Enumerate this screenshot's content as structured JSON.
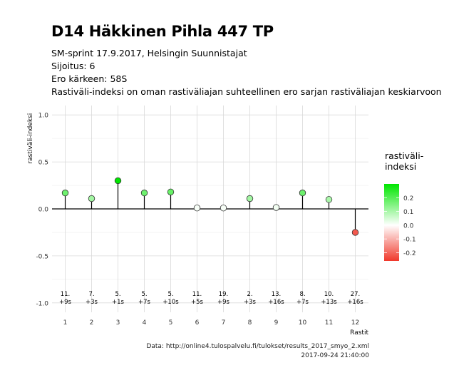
{
  "title": "D14 Häkkinen Pihla 447 TP",
  "subtitle_lines": [
    "SM-sprint 17.9.2017, Helsingin Suunnistajat",
    "Sijoitus: 6",
    "Ero kärkeen: 58S",
    "Rastiväli-indeksi on oman rastiväliajan suhteellinen ero sarjan rastiväliajan keskiarvoon"
  ],
  "caption": {
    "line1": "Data: http://online4.tulospalvelu.fi/tulokset/results_2017_smyo_2.xml",
    "line2": "2017-09-24 21:40:00"
  },
  "legend": {
    "title_line1": "rastiväli-",
    "title_line2": "indeksi",
    "ticks": [
      "0.2",
      "0.1",
      "0.0",
      "-0.1",
      "-0.2"
    ],
    "tick_values": [
      0.2,
      0.1,
      0.0,
      -0.1,
      -0.2
    ],
    "range": [
      -0.26,
      0.3
    ],
    "colors": {
      "high": "#00e600",
      "mid": "#ffffff",
      "low": "#f0382b"
    }
  },
  "chart_data": {
    "type": "lollipop",
    "xlabel": "Rastit",
    "ylabel": "rastiväli-indeksi",
    "ylim": [
      -1.0,
      1.0
    ],
    "yticks": [
      -1.0,
      -0.5,
      0.0,
      0.5,
      1.0
    ],
    "ytick_labels": [
      "-1.0",
      "-0.5",
      "0.0",
      "0.5",
      "1.0"
    ],
    "grid": true,
    "points": [
      {
        "x": 1,
        "value": 0.17,
        "rank": "11.",
        "diff": "+9s"
      },
      {
        "x": 2,
        "value": 0.11,
        "rank": "7.",
        "diff": "+3s"
      },
      {
        "x": 3,
        "value": 0.3,
        "rank": "5.",
        "diff": "+1s"
      },
      {
        "x": 4,
        "value": 0.17,
        "rank": "5.",
        "diff": "+7s"
      },
      {
        "x": 5,
        "value": 0.18,
        "rank": "5.",
        "diff": "+10s"
      },
      {
        "x": 6,
        "value": 0.01,
        "rank": "11.",
        "diff": "+5s"
      },
      {
        "x": 7,
        "value": 0.01,
        "rank": "19.",
        "diff": "+9s"
      },
      {
        "x": 8,
        "value": 0.11,
        "rank": "2.",
        "diff": "+3s"
      },
      {
        "x": 9,
        "value": 0.015,
        "rank": "13.",
        "diff": "+16s"
      },
      {
        "x": 10,
        "value": 0.17,
        "rank": "8.",
        "diff": "+7s"
      },
      {
        "x": 11,
        "value": 0.1,
        "rank": "10.",
        "diff": "+13s"
      },
      {
        "x": 12,
        "value": -0.25,
        "rank": "27.",
        "diff": "+16s"
      }
    ],
    "xtick_labels": [
      "1",
      "2",
      "3",
      "4",
      "5",
      "6",
      "7",
      "8",
      "9",
      "10",
      "11",
      "12"
    ]
  }
}
